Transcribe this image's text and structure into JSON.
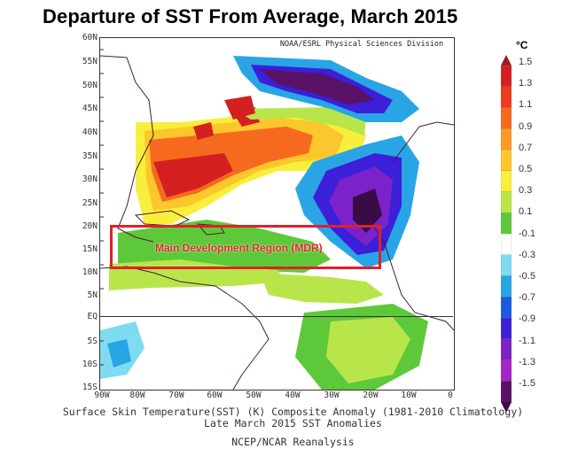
{
  "title": "Departure of SST From Average, March 2015",
  "map": {
    "credit": "NOAA/ESRL Physical Sciences Division",
    "lat_labels": [
      "60N",
      "55N",
      "50N",
      "45N",
      "40N",
      "35N",
      "30N",
      "25N",
      "20N",
      "15N",
      "10N",
      "5N",
      "EQ",
      "5S",
      "10S",
      "15S"
    ],
    "lon_labels": [
      "90W",
      "80W",
      "70W",
      "60W",
      "50W",
      "40W",
      "30W",
      "20W",
      "10W",
      "0"
    ],
    "region_label": "Main Development Region (MDR)",
    "region": {
      "lon_range": [
        "85W",
        "17W"
      ],
      "lat_range": [
        "10N",
        "20N"
      ]
    }
  },
  "captions": {
    "line1": "Surface Skin Temperature(SST) (K) Composite Anomaly (1981-2010 Climatology)",
    "line2": "Late March 2015 SST Anomalies",
    "line3": "NCEP/NCAR Reanalysis"
  },
  "colorbar": {
    "unit": "°C",
    "ticks": [
      "1.5",
      "1.3",
      "1.1",
      "0.9",
      "0.7",
      "0.5",
      "0.3",
      "0.1",
      "-0.1",
      "-0.3",
      "-0.5",
      "-0.7",
      "-0.9",
      "-1.1",
      "-1.3",
      "-1.5"
    ],
    "colors": [
      "#9b1b1b",
      "#d42020",
      "#ef3a1e",
      "#f66a1f",
      "#fb9a26",
      "#fbc72c",
      "#f7ef3b",
      "#b8e64a",
      "#5dc93a",
      "#ffffff",
      "#7fdcf0",
      "#29a5e6",
      "#1a5ae0",
      "#3b1fd9",
      "#7b22c9",
      "#a524c9",
      "#5a1266",
      "#3a0c44"
    ]
  }
}
